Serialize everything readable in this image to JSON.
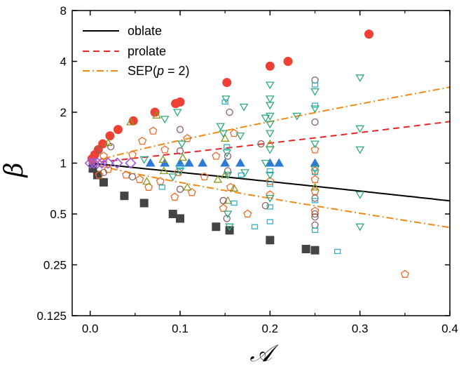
{
  "chart_data": {
    "type": "scatter",
    "xlabel": "𝒜",
    "ylabel": "β",
    "xlim": [
      -0.02,
      0.4
    ],
    "ylim": [
      0.125,
      8
    ],
    "yscale": "log2",
    "x_ticks": [
      0.0,
      0.1,
      0.2,
      0.3,
      0.4
    ],
    "x_tick_labels": [
      "0.0",
      "0.1",
      "0.2",
      "0.3",
      "0.4"
    ],
    "y_ticks": [
      0.125,
      0.25,
      0.5,
      1,
      2,
      4,
      8
    ],
    "y_tick_labels": [
      "0.125",
      "0.25",
      "0.5",
      "1",
      "2",
      "4",
      "8"
    ],
    "legend_position": "top-left",
    "curves": [
      {
        "name": "oblate",
        "color": "#000000",
        "style": "solid",
        "branch": "oblate_exact"
      },
      {
        "name": "prolate",
        "color": "#e8262a",
        "style": "dashed",
        "branch": "prolate_exact"
      },
      {
        "name": "SEP(p = 2)",
        "name_prefix": "SEP(",
        "name_italic": "p",
        "name_suffix": " = 2)",
        "color": "#ef8a17",
        "style": "dashdot",
        "branch": "sep_p2"
      }
    ],
    "series": [
      {
        "name": "prolate points",
        "marker": "circle-filled",
        "color": "#ef4036",
        "points": [
          [
            0.002,
            1.06
          ],
          [
            0.005,
            1.12
          ],
          [
            0.009,
            1.2
          ],
          [
            0.014,
            1.3
          ],
          [
            0.022,
            1.45
          ],
          [
            0.031,
            1.58
          ],
          [
            0.048,
            1.78
          ],
          [
            0.072,
            2.0
          ],
          [
            0.095,
            2.25
          ],
          [
            0.1,
            2.3
          ],
          [
            0.152,
            3.0
          ],
          [
            0.2,
            3.75
          ],
          [
            0.22,
            4.0
          ],
          [
            0.31,
            5.8
          ]
        ]
      },
      {
        "name": "oblate points",
        "marker": "square-filled",
        "color": "#444444",
        "points": [
          [
            0.003,
            0.93
          ],
          [
            0.008,
            0.85
          ],
          [
            0.015,
            0.77
          ],
          [
            0.038,
            0.64
          ],
          [
            0.06,
            0.58
          ],
          [
            0.092,
            0.5
          ],
          [
            0.1,
            0.47
          ],
          [
            0.14,
            0.42
          ],
          [
            0.155,
            0.4
          ],
          [
            0.2,
            0.35
          ],
          [
            0.24,
            0.31
          ],
          [
            0.25,
            0.305
          ]
        ]
      },
      {
        "name": "beta=1 triangles",
        "marker": "triangle-filled",
        "color": "#2e7bd4",
        "points": [
          [
            0.067,
            1.0
          ],
          [
            0.083,
            1.0
          ],
          [
            0.1,
            1.0
          ],
          [
            0.11,
            1.0
          ],
          [
            0.125,
            1.0
          ],
          [
            0.15,
            1.0
          ],
          [
            0.167,
            1.0
          ],
          [
            0.2,
            1.0
          ],
          [
            0.21,
            1.0
          ],
          [
            0.25,
            1.0
          ]
        ]
      },
      {
        "name": "diamonds",
        "marker": "diamond-open",
        "color": "#a05de0",
        "points": [
          [
            0.0,
            1.0
          ],
          [
            0.004,
            1.0
          ],
          [
            0.008,
            1.0
          ],
          [
            0.013,
            1.0
          ],
          [
            0.02,
            1.0
          ],
          [
            0.03,
            1.0
          ],
          [
            0.045,
            1.0
          ]
        ]
      },
      {
        "name": "pentagons",
        "marker": "pentagon-open",
        "color": "#f06a28",
        "points": [
          [
            0.01,
            0.85
          ],
          [
            0.015,
            1.1
          ],
          [
            0.02,
            0.92
          ],
          [
            0.04,
            0.85
          ],
          [
            0.047,
            1.12
          ],
          [
            0.055,
            0.8
          ],
          [
            0.058,
            1.35
          ],
          [
            0.065,
            0.72
          ],
          [
            0.07,
            1.55
          ],
          [
            0.078,
            0.78
          ],
          [
            0.083,
            1.2
          ],
          [
            0.094,
            0.63
          ],
          [
            0.098,
            0.88
          ],
          [
            0.108,
            1.4
          ],
          [
            0.113,
            0.67
          ],
          [
            0.127,
            0.83
          ],
          [
            0.14,
            1.1
          ],
          [
            0.148,
            0.54
          ],
          [
            0.156,
            0.72
          ],
          [
            0.16,
            1.5
          ],
          [
            0.175,
            0.5
          ],
          [
            0.2,
            0.78
          ],
          [
            0.2,
            0.65
          ],
          [
            0.25,
            0.52
          ],
          [
            0.25,
            0.68
          ],
          [
            0.25,
            0.8
          ],
          [
            0.25,
            0.9
          ],
          [
            0.25,
            1.2
          ],
          [
            0.35,
            0.22
          ]
        ]
      },
      {
        "name": "up triangles open",
        "marker": "triangle-open",
        "color": "#8a9a1e",
        "points": [
          [
            0.02,
            1.32
          ],
          [
            0.045,
            1.75
          ],
          [
            0.063,
            0.78
          ],
          [
            0.074,
            1.92
          ],
          [
            0.081,
            1.05
          ],
          [
            0.082,
            0.9
          ],
          [
            0.103,
            1.08
          ],
          [
            0.108,
            0.72
          ],
          [
            0.142,
            0.8
          ],
          [
            0.15,
            0.85
          ],
          [
            0.15,
            1.4
          ],
          [
            0.153,
            0.6
          ],
          [
            0.16,
            0.71
          ],
          [
            0.2,
            1.3
          ],
          [
            0.25,
            0.72
          ]
        ]
      },
      {
        "name": "circles open",
        "marker": "circle-open",
        "color": "#8b6060",
        "points": [
          [
            0.01,
            1.2
          ],
          [
            0.015,
            0.88
          ],
          [
            0.023,
            1.25
          ],
          [
            0.047,
            0.83
          ],
          [
            0.1,
            1.58
          ],
          [
            0.1,
            1.18
          ],
          [
            0.1,
            0.7
          ],
          [
            0.148,
            0.6
          ],
          [
            0.152,
            0.47
          ],
          [
            0.153,
            1.1
          ],
          [
            0.155,
            2.0
          ],
          [
            0.153,
            0.9
          ],
          [
            0.195,
            0.56
          ],
          [
            0.19,
            1.3
          ],
          [
            0.25,
            3.1
          ],
          [
            0.25,
            1.75
          ],
          [
            0.25,
            0.5
          ],
          [
            0.25,
            0.62
          ],
          [
            0.25,
            0.48
          ],
          [
            0.25,
            0.43
          ]
        ]
      },
      {
        "name": "down triangles open",
        "marker": "triangle-down-open",
        "color": "#2eab7c",
        "points": [
          [
            0.06,
            1.05
          ],
          [
            0.083,
            1.82
          ],
          [
            0.092,
            0.83
          ],
          [
            0.097,
            2.0
          ],
          [
            0.1,
            0.9
          ],
          [
            0.102,
            1.3
          ],
          [
            0.145,
            1.65
          ],
          [
            0.148,
            1.5
          ],
          [
            0.151,
            2.4
          ],
          [
            0.152,
            1.15
          ],
          [
            0.153,
            0.85
          ],
          [
            0.153,
            0.5
          ],
          [
            0.155,
            0.42
          ],
          [
            0.167,
            1.45
          ],
          [
            0.171,
            2.15
          ],
          [
            0.172,
            0.88
          ],
          [
            0.195,
            1.85
          ],
          [
            0.195,
            1.0
          ],
          [
            0.2,
            2.9
          ],
          [
            0.2,
            2.4
          ],
          [
            0.2,
            2.2
          ],
          [
            0.2,
            1.9
          ],
          [
            0.2,
            1.7
          ],
          [
            0.2,
            1.5
          ],
          [
            0.2,
            1.2
          ],
          [
            0.2,
            0.85
          ],
          [
            0.2,
            0.62
          ],
          [
            0.23,
            1.9
          ],
          [
            0.25,
            2.65
          ],
          [
            0.25,
            2.1
          ],
          [
            0.25,
            1.3
          ],
          [
            0.25,
            0.92
          ],
          [
            0.3,
            3.2
          ],
          [
            0.3,
            1.6
          ],
          [
            0.3,
            1.2
          ],
          [
            0.3,
            0.65
          ],
          [
            0.3,
            0.42
          ]
        ]
      },
      {
        "name": "squares open",
        "marker": "square-open",
        "color": "#28b4c8",
        "points": [
          [
            0.08,
            0.72
          ],
          [
            0.1,
            0.95
          ],
          [
            0.15,
            2.3
          ],
          [
            0.152,
            1.25
          ],
          [
            0.16,
            0.58
          ],
          [
            0.168,
            0.85
          ],
          [
            0.2,
            0.9
          ],
          [
            0.2,
            0.75
          ],
          [
            0.2,
            0.55
          ],
          [
            0.2,
            0.45
          ],
          [
            0.25,
            2.9
          ],
          [
            0.25,
            2.2
          ],
          [
            0.25,
            0.88
          ],
          [
            0.25,
            0.6
          ],
          [
            0.25,
            0.4
          ],
          [
            0.275,
            0.3
          ],
          [
            0.183,
            0.42
          ]
        ]
      }
    ]
  }
}
